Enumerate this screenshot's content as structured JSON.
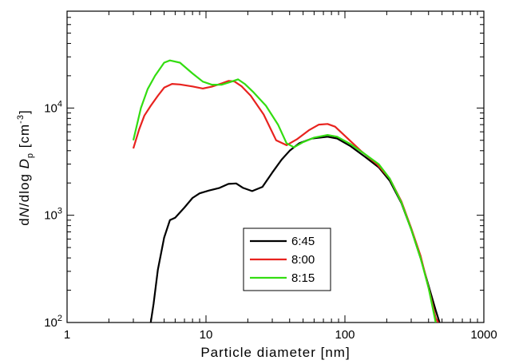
{
  "chart_data": {
    "type": "line",
    "xlabel": "Particle diameter [nm]",
    "ylabel": {
      "prefix": "d",
      "n": "N",
      "dlog": "/dlog",
      "d": "D",
      "sub": "p",
      "units": "[cm",
      "exp": "-3",
      "close": "]"
    },
    "x_scale": "log",
    "y_scale": "log",
    "xlim": [
      1,
      1000
    ],
    "ylim": [
      100,
      80000
    ],
    "x_ticks": [
      {
        "value": 1,
        "label": "1"
      },
      {
        "value": 10,
        "label": "10"
      },
      {
        "value": 100,
        "label": "100"
      },
      {
        "value": 1000,
        "label": "1000"
      }
    ],
    "y_ticks": [
      {
        "value": 100,
        "base": "10",
        "exp": "2"
      },
      {
        "value": 1000,
        "base": "10",
        "exp": "3"
      },
      {
        "value": 10000,
        "base": "10",
        "exp": "4"
      }
    ],
    "grid": false,
    "legend_position": "bottom-center",
    "series": [
      {
        "name": "6:45",
        "color": "#000000",
        "points": [
          [
            4.0,
            100
          ],
          [
            4.2,
            150
          ],
          [
            4.5,
            310
          ],
          [
            5.0,
            620
          ],
          [
            5.5,
            900
          ],
          [
            6.0,
            950
          ],
          [
            7.0,
            1180
          ],
          [
            8.0,
            1450
          ],
          [
            9.0,
            1600
          ],
          [
            10.5,
            1700
          ],
          [
            12.5,
            1800
          ],
          [
            14.5,
            1960
          ],
          [
            16.5,
            1980
          ],
          [
            18.5,
            1800
          ],
          [
            21.5,
            1680
          ],
          [
            25.5,
            1840
          ],
          [
            30,
            2500
          ],
          [
            35,
            3300
          ],
          [
            40,
            4000
          ],
          [
            47,
            4700
          ],
          [
            58,
            5200
          ],
          [
            75,
            5400
          ],
          [
            88,
            5200
          ],
          [
            110,
            4400
          ],
          [
            140,
            3500
          ],
          [
            175,
            2800
          ],
          [
            210,
            2100
          ],
          [
            255,
            1300
          ],
          [
            300,
            740
          ],
          [
            350,
            400
          ],
          [
            400,
            220
          ],
          [
            450,
            130
          ],
          [
            480,
            100
          ]
        ]
      },
      {
        "name": "8:00",
        "color": "#e8231f",
        "points": [
          [
            3.0,
            4200
          ],
          [
            3.3,
            6300
          ],
          [
            3.6,
            8500
          ],
          [
            4.0,
            10500
          ],
          [
            4.5,
            13000
          ],
          [
            5.0,
            15500
          ],
          [
            5.7,
            16800
          ],
          [
            6.5,
            16600
          ],
          [
            8.0,
            15900
          ],
          [
            9.5,
            15200
          ],
          [
            11,
            15800
          ],
          [
            13,
            17000
          ],
          [
            14.5,
            17900
          ],
          [
            16,
            17700
          ],
          [
            18,
            16000
          ],
          [
            21,
            13000
          ],
          [
            26,
            8700
          ],
          [
            32,
            5000
          ],
          [
            38,
            4500
          ],
          [
            45,
            5100
          ],
          [
            55,
            6200
          ],
          [
            65,
            7000
          ],
          [
            75,
            7100
          ],
          [
            85,
            6700
          ],
          [
            100,
            5500
          ],
          [
            130,
            4000
          ],
          [
            170,
            3000
          ],
          [
            210,
            2200
          ],
          [
            255,
            1350
          ],
          [
            300,
            760
          ],
          [
            350,
            420
          ],
          [
            400,
            210
          ],
          [
            450,
            110
          ],
          [
            470,
            100
          ]
        ]
      },
      {
        "name": "8:15",
        "color": "#33dd11",
        "points": [
          [
            3.0,
            5000
          ],
          [
            3.4,
            10000
          ],
          [
            3.8,
            15000
          ],
          [
            4.3,
            20000
          ],
          [
            5.0,
            26500
          ],
          [
            5.5,
            27800
          ],
          [
            6.5,
            26500
          ],
          [
            8.0,
            21000
          ],
          [
            9.5,
            17600
          ],
          [
            11,
            16500
          ],
          [
            13,
            16500
          ],
          [
            15,
            17500
          ],
          [
            17,
            18500
          ],
          [
            19,
            16800
          ],
          [
            22,
            14000
          ],
          [
            27,
            10500
          ],
          [
            33,
            7000
          ],
          [
            38,
            4700
          ],
          [
            43,
            4300
          ],
          [
            50,
            4800
          ],
          [
            60,
            5300
          ],
          [
            75,
            5600
          ],
          [
            88,
            5400
          ],
          [
            110,
            4600
          ],
          [
            140,
            3700
          ],
          [
            175,
            3000
          ],
          [
            210,
            2200
          ],
          [
            255,
            1320
          ],
          [
            300,
            740
          ],
          [
            350,
            400
          ],
          [
            400,
            210
          ],
          [
            450,
            100
          ]
        ]
      }
    ]
  }
}
